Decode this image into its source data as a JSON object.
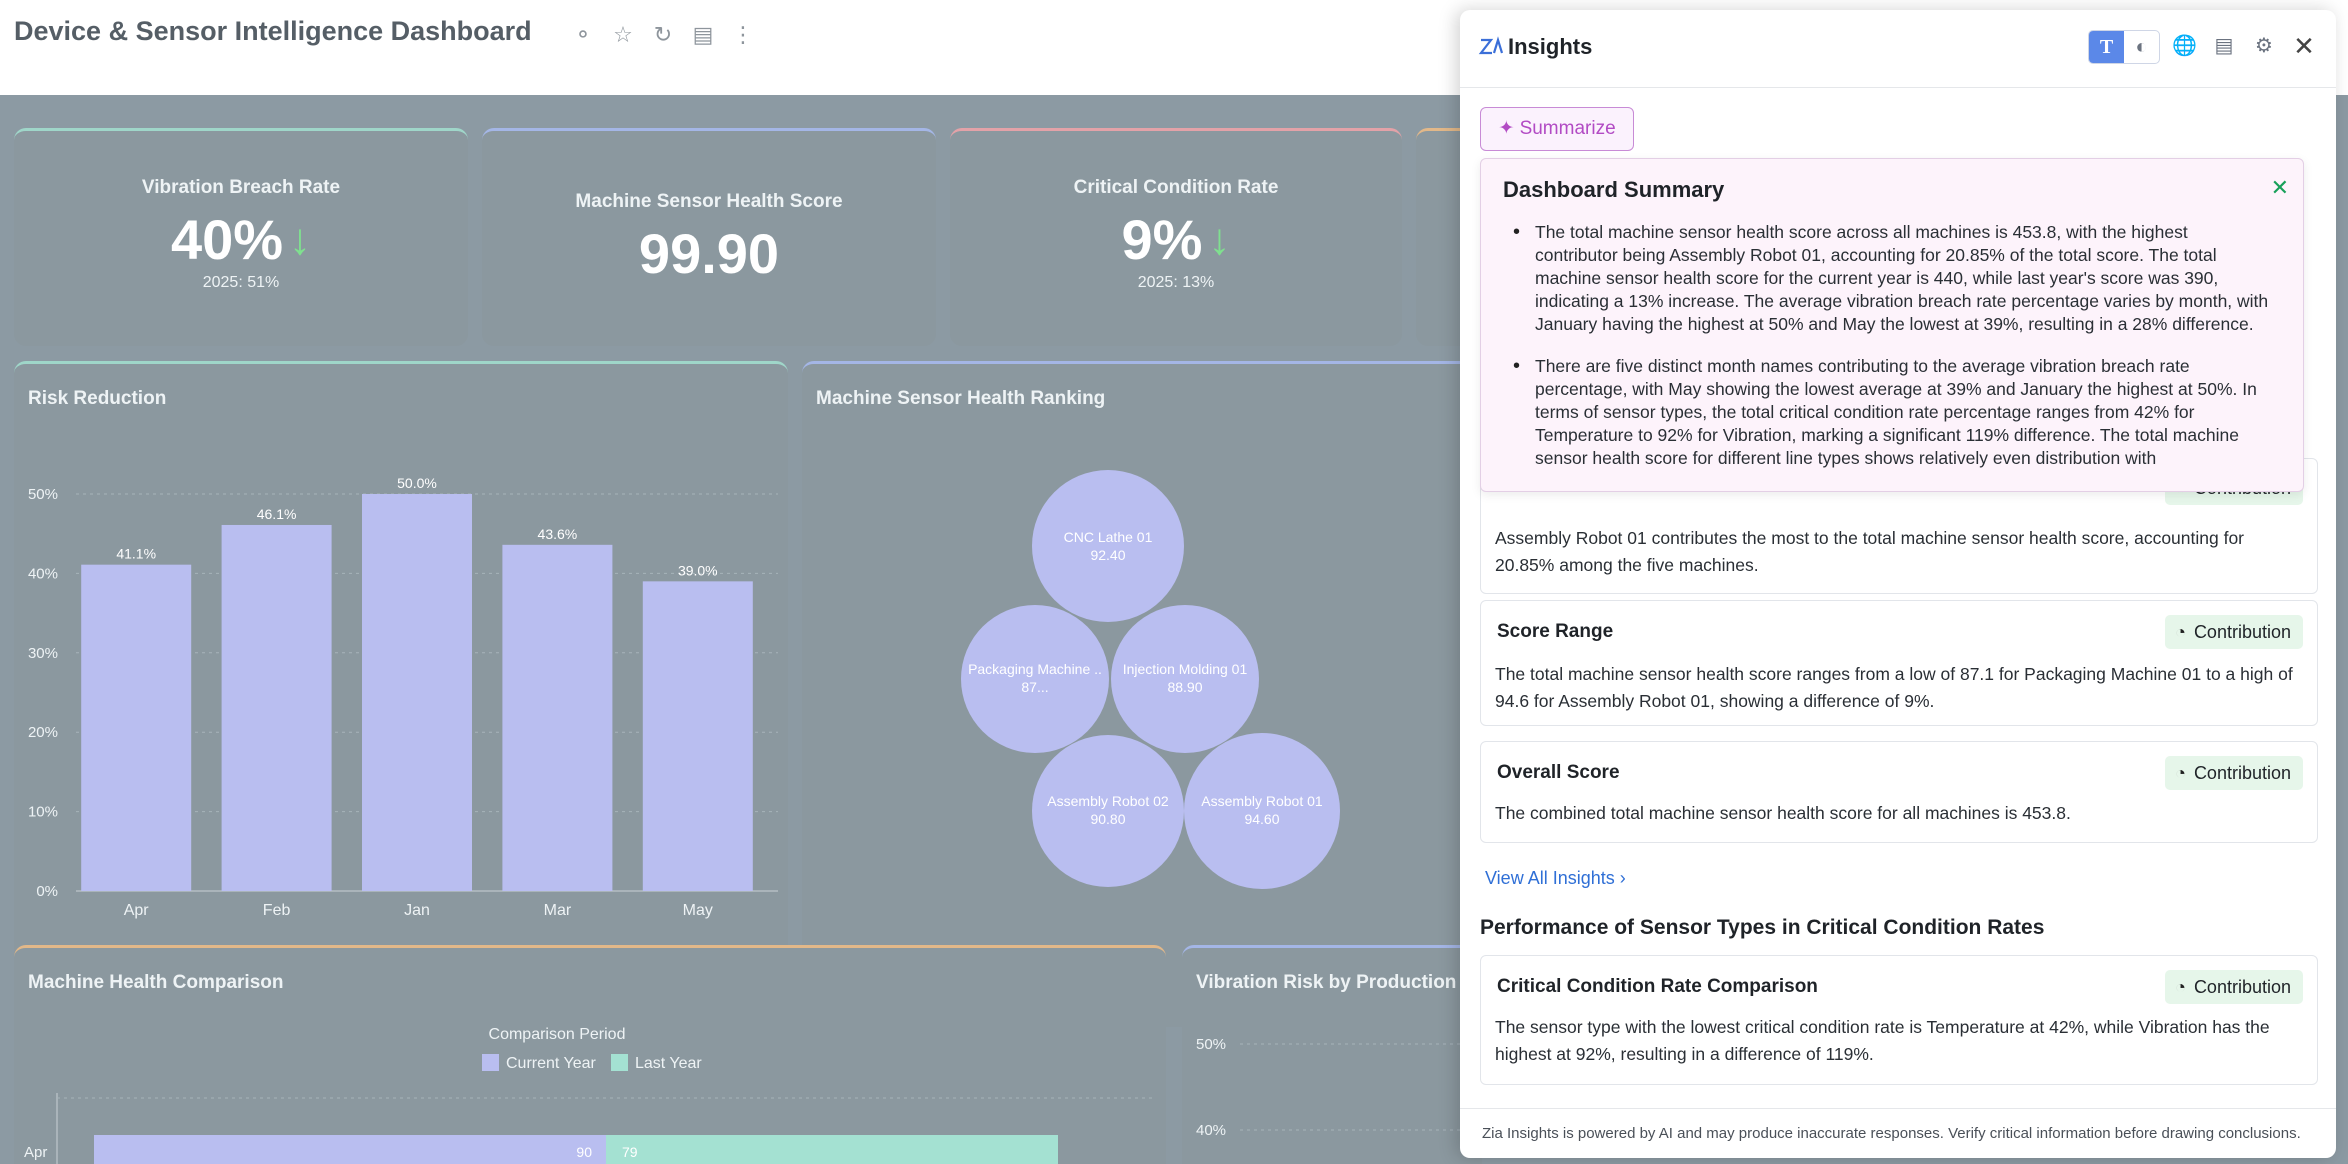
{
  "header": {
    "title": "Device & Sensor Intelligence Dashboard"
  },
  "kpis": [
    {
      "title": "Vibration Breach Rate",
      "value": "40%",
      "trend": "down",
      "sub": "2025: 51%"
    },
    {
      "title": "Machine Sensor Health Score",
      "value": "99.90",
      "trend": "",
      "sub": ""
    },
    {
      "title": "Critical Condition Rate",
      "value": "9%",
      "trend": "down",
      "sub": "2025: 13%"
    }
  ],
  "risk_chart": {
    "title": "Risk Reduction",
    "chart_data": {
      "type": "bar",
      "categories": [
        "Apr",
        "Feb",
        "Jan",
        "Mar",
        "May"
      ],
      "values": [
        41.1,
        46.1,
        50.0,
        43.6,
        39.0
      ],
      "value_labels": [
        "41.1%",
        "46.1%",
        "50.0%",
        "43.6%",
        "39.0%"
      ],
      "yticks": [
        "0%",
        "10%",
        "20%",
        "30%",
        "40%",
        "50%"
      ],
      "ylim": [
        0,
        50
      ],
      "color": "#b9bef0"
    }
  },
  "ranking_chart": {
    "title": "Machine Sensor Health Ranking",
    "bubbles": [
      {
        "name": "CNC Lathe 01",
        "value": "92.40"
      },
      {
        "name": "Packaging Machine ..",
        "value": "87..."
      },
      {
        "name": "Injection Molding 01",
        "value": "88.90"
      },
      {
        "name": "Assembly Robot 02",
        "value": "90.80"
      },
      {
        "name": "Assembly Robot 01",
        "value": "94.60"
      }
    ]
  },
  "health_comparison": {
    "title": "Machine Health Comparison",
    "legend_title": "Comparison Period",
    "legend": [
      "Current Year",
      "Last Year"
    ],
    "row_label": "Apr",
    "current_value": "90",
    "last_value": "79"
  },
  "vibration_risk": {
    "title": "Vibration Risk by Production L",
    "yticks": [
      "50%",
      "40%"
    ]
  },
  "panel": {
    "title": "Insights",
    "summarize_label": "Summarize",
    "summary": {
      "title": "Dashboard Summary",
      "bullets": [
        "The total machine sensor health score across all machines is 453.8, with the highest contributor being Assembly Robot 01, accounting for 20.85% of the total score. The total machine sensor health score for the current year is 440, while last year's score was 390, indicating a 13% increase. The average vibration breach rate percentage varies by month, with January having the highest at 50% and May the lowest at 39%, resulting in a 28% difference.",
        "There are five distinct month names contributing to the average vibration breach rate percentage, with May showing the lowest average at 39% and January the highest at 50%. In terms of sensor types, the total critical condition rate percentage ranges from 42% for Temperature to 92% for Vibration, marking a significant 119% difference. The total machine sensor health score for different line types shows relatively even distribution with"
      ]
    },
    "contribution_label": "Contribution",
    "cards": [
      {
        "title": "",
        "text": "Assembly Robot 01 contributes the most to the total machine sensor health score, accounting for 20.85% among the five machines."
      },
      {
        "title": "Score Range",
        "text": "The total machine sensor health score ranges from a low of 87.1 for Packaging Machine 01 to a high of 94.6 for Assembly Robot 01, showing a difference of 9%."
      },
      {
        "title": "Overall Score",
        "text": "The combined total machine sensor health score for all machines is 453.8."
      }
    ],
    "view_all": "View All Insights",
    "section_title": "Performance of Sensor Types in Critical Condition Rates",
    "section_card": {
      "title": "Critical Condition Rate Comparison",
      "text": "The sensor type with the lowest critical condition rate is Temperature at 42%, while Vibration has the highest at 92%, resulting in a difference of 119%."
    },
    "footer": "Zia Insights is powered by AI and may produce inaccurate responses. Verify critical information before drawing conclusions."
  }
}
